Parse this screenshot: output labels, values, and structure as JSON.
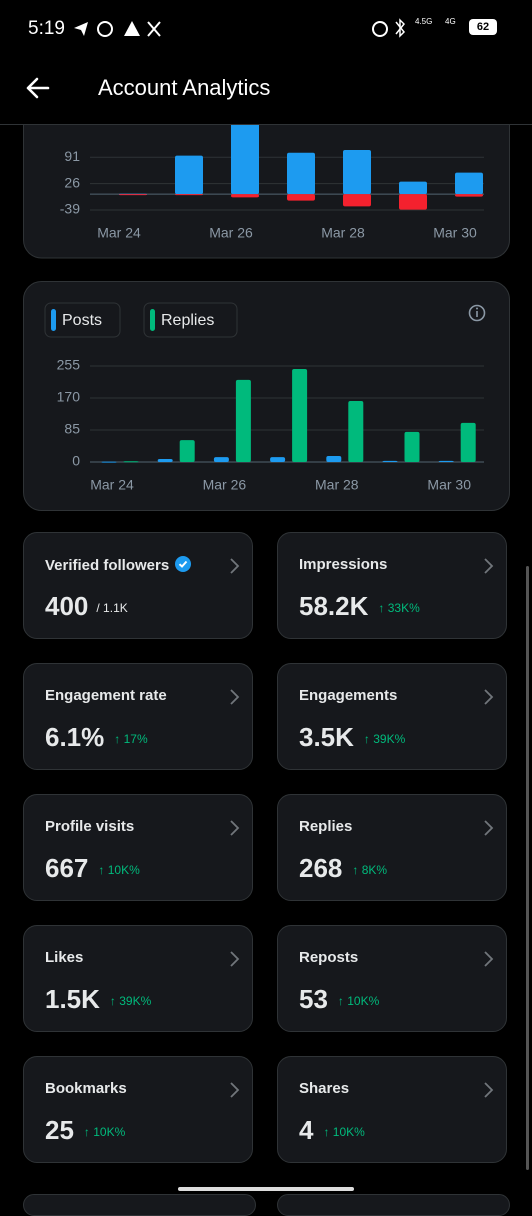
{
  "status_bar": {
    "time": "5:19",
    "network_1": "4.5G",
    "network_2": "4G",
    "battery": "62"
  },
  "header": {
    "title": "Account Analytics"
  },
  "chart_data": [
    {
      "type": "bar",
      "bar_mode": "diverging",
      "categories": [
        "Mar 24",
        null,
        "Mar 26",
        null,
        "Mar 28",
        null,
        "Mar 30"
      ],
      "series": [
        {
          "color": "#1d9bf0",
          "values": [
            1,
            95,
            200,
            102,
            109,
            31,
            53
          ]
        },
        {
          "color": "#f4212e",
          "values": [
            0,
            -1,
            -8,
            -16,
            -30,
            -38,
            -6
          ]
        }
      ],
      "ylim": [
        -44,
        173
      ],
      "yticks": [
        91,
        26,
        -39
      ],
      "grid": true
    },
    {
      "type": "bar",
      "bar_mode": "grouped",
      "legend": "top-left",
      "categories": [
        "Mar 24",
        null,
        "Mar 26",
        null,
        "Mar 28",
        null,
        "Mar 30"
      ],
      "series": [
        {
          "name": "Posts",
          "color": "#1d9bf0",
          "values": [
            1,
            8,
            13,
            13,
            16,
            3,
            3
          ]
        },
        {
          "name": "Replies",
          "color": "#00ba7c",
          "values": [
            2,
            58,
            218,
            247,
            162,
            80,
            104
          ]
        }
      ],
      "ylim": [
        0,
        255
      ],
      "yticks": [
        0,
        85,
        170,
        255
      ],
      "grid": true
    }
  ],
  "metrics": [
    {
      "label": "Verified followers",
      "value": "400",
      "total": "/ 1.1K",
      "verified_badge": true
    },
    {
      "label": "Impressions",
      "value": "58.2K",
      "change": "↑ 33K%"
    },
    {
      "label": "Engagement rate",
      "value": "6.1%",
      "change": "↑ 17%"
    },
    {
      "label": "Engagements",
      "value": "3.5K",
      "change": "↑ 39K%"
    },
    {
      "label": "Profile visits",
      "value": "667",
      "change": "↑ 10K%"
    },
    {
      "label": "Replies",
      "value": "268",
      "change": "↑ 8K%"
    },
    {
      "label": "Likes",
      "value": "1.5K",
      "change": "↑ 39K%"
    },
    {
      "label": "Reposts",
      "value": "53",
      "change": "↑ 10K%"
    },
    {
      "label": "Bookmarks",
      "value": "25",
      "change": "↑ 10K%"
    },
    {
      "label": "Shares",
      "value": "4",
      "change": "↑ 10K%"
    }
  ]
}
